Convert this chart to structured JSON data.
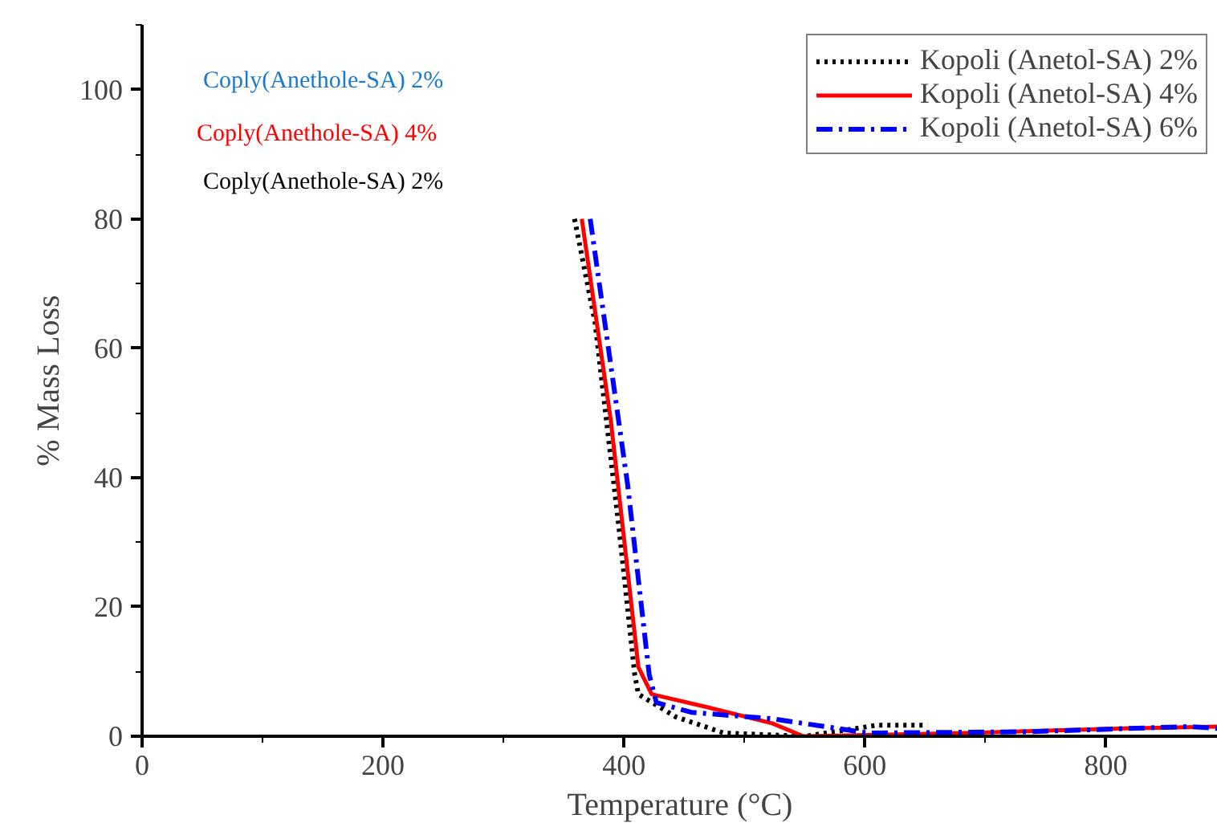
{
  "chart_data": {
    "type": "line",
    "xlabel": "Temperature (°C)",
    "ylabel": "% Mass Loss",
    "xlim": [
      0,
      893
    ],
    "ylim": [
      0,
      110
    ],
    "xticks": [
      0,
      200,
      400,
      600,
      800
    ],
    "yticks": [
      0,
      20,
      40,
      60,
      80,
      100
    ],
    "grid": false,
    "legend": "top right",
    "marker": "none",
    "annotations": [
      "Coply(Anethole-SA) 2%",
      "Coply(Anethole-SA) 4%",
      "Coply(Anethole-SA) 2%"
    ],
    "series": [
      {
        "name": "Kopoli (Anetol-SA) 2%",
        "color": "#000000",
        "line_style": "dotted",
        "x": [
          359,
          376,
          396,
          409,
          412,
          443,
          483,
          550,
          610,
          652
        ],
        "values": [
          80,
          64,
          32,
          9.5,
          6.5,
          3,
          0.5,
          0,
          1.7,
          1.7
        ]
      },
      {
        "name": "Kopoli (Anetol-SA) 4%",
        "color": "#ff0000",
        "line_style": "solid",
        "x": [
          365,
          389,
          412,
          423,
          469,
          523,
          549,
          683,
          816,
          893
        ],
        "values": [
          80,
          49,
          10.7,
          6.5,
          4.5,
          2,
          0,
          0.5,
          1.2,
          1.5
        ]
      },
      {
        "name": "Kopoli (Anetol-SA) 6%",
        "color": "#0000ff",
        "line_style": "dashdot",
        "x": [
          372,
          403,
          421,
          427,
          456,
          523,
          603,
          736,
          869,
          893
        ],
        "values": [
          80,
          39,
          9.5,
          5.2,
          3.7,
          2.7,
          0.5,
          0.7,
          1.5,
          1.2
        ]
      }
    ]
  }
}
